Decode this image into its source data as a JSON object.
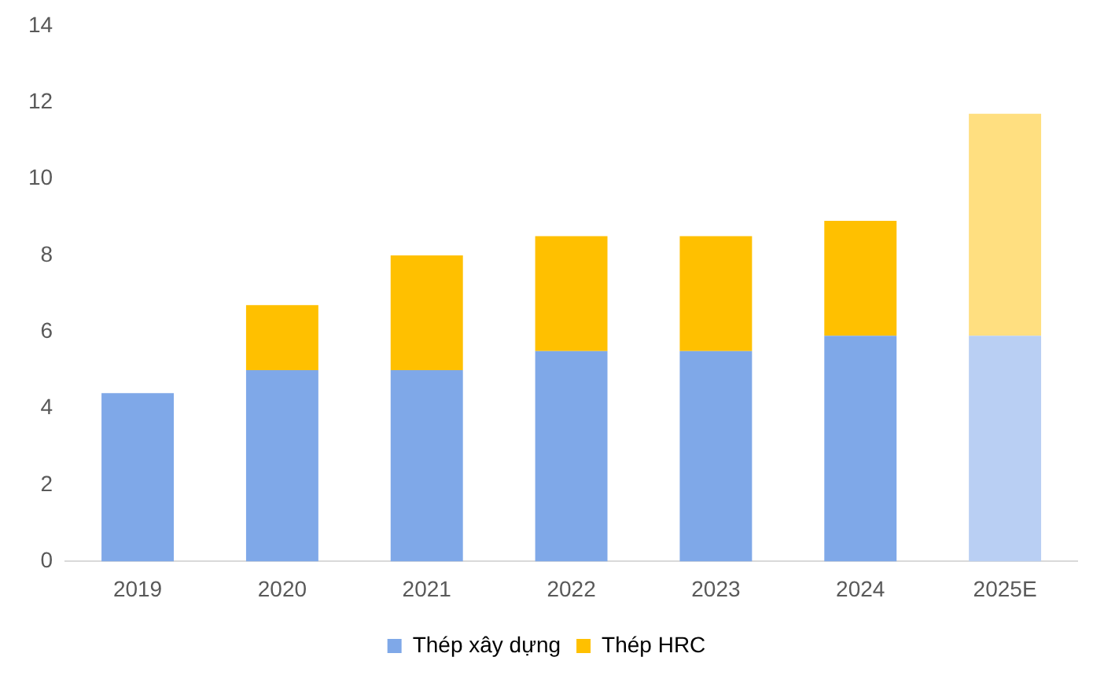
{
  "chart_data": {
    "type": "bar",
    "stacked": true,
    "categories": [
      "2019",
      "2020",
      "2021",
      "2022",
      "2023",
      "2024",
      "2025E"
    ],
    "series": [
      {
        "name": "Thép xây dựng",
        "color": "#7fa8e8",
        "colors": [
          "#7fa8e8",
          "#7fa8e8",
          "#7fa8e8",
          "#7fa8e8",
          "#7fa8e8",
          "#7fa8e8",
          "#b9cff3"
        ],
        "values": [
          4.4,
          5.0,
          5.0,
          5.5,
          5.5,
          5.9,
          5.9
        ]
      },
      {
        "name": "Thép HRC",
        "color": "#ffc000",
        "colors": [
          "#ffc000",
          "#ffc000",
          "#ffc000",
          "#ffc000",
          "#ffc000",
          "#ffc000",
          "#ffdf80"
        ],
        "values": [
          null,
          1.7,
          3.0,
          3.0,
          3.0,
          3.0,
          5.8
        ]
      }
    ],
    "ylim": [
      0,
      14
    ],
    "yticks": [
      0,
      2,
      4,
      6,
      8,
      10,
      12,
      14
    ],
    "grid": false,
    "legend": "bottom"
  }
}
